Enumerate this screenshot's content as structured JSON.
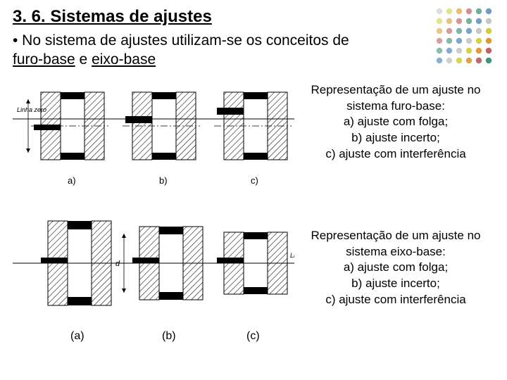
{
  "title": "3. 6. Sistemas de ajustes",
  "intro_pre": "• No sistema de ajustes utilizam-se os conceitos de ",
  "term1": "furo-base",
  "intro_e": " e ",
  "term2": "eixo-base",
  "caption1_l1": "Representação de um ajuste no",
  "caption1_l2": "sistema furo-base:",
  "caption1_l3": "a) ajuste com folga;",
  "caption1_l4": "b) ajuste incerto;",
  "caption1_l5": "c) ajuste com interferência",
  "caption2_l1": "Representação de um ajuste no",
  "caption2_l2": "sistema eixo-base:",
  "caption2_l3": "a) ajuste com folga;",
  "caption2_l4": "b) ajuste incerto;",
  "caption2_l5": "c) ajuste com interferência",
  "label_linha_zero": "Linha zero",
  "label_a": "a)",
  "label_b": "b)",
  "label_c": "c)",
  "label_pa": "(a)",
  "label_pb": "(b)",
  "label_pc": "(c)",
  "dim_d": "d",
  "decor_colors": [
    "#b0b0b0",
    "#c0c000",
    "#d38000",
    "#b04040",
    "#208060",
    "#3070b0"
  ],
  "stroke": "#000000",
  "fill_black": "#000000",
  "bg": "#ffffff"
}
